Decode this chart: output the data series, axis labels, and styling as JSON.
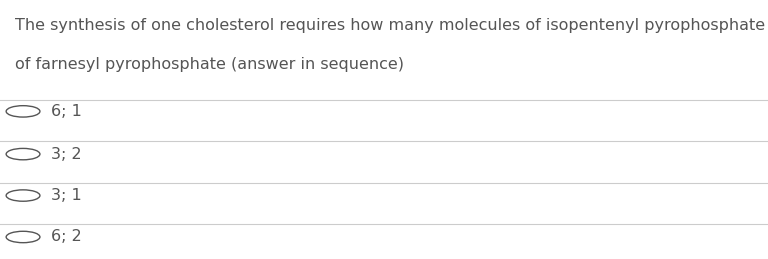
{
  "question_line1": "The synthesis of one cholesterol requires how many molecules of isopentenyl pyrophosphate and how many molecules",
  "question_line2": "of farnesyl pyrophosphate (answer in sequence)",
  "options": [
    "6; 1",
    "3; 2",
    "3; 1",
    "6; 2"
  ],
  "bg_color": "#ffffff",
  "text_color": "#555555",
  "line_color": "#cccccc",
  "question_fontsize": 11.5,
  "option_fontsize": 11.5,
  "fig_width": 7.68,
  "fig_height": 2.59
}
